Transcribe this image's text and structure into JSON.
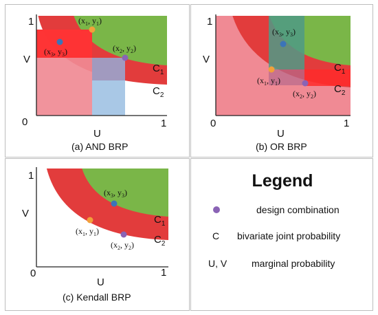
{
  "colors": {
    "green": "#7ab648",
    "red_band": "#e23c3c",
    "pink": "#f08a94",
    "blue": "#a9c8e6",
    "bright_red": "#ff2a2a",
    "teal": "#4f9a86",
    "point_design": "#8a63b5",
    "point_x1": "#f2a03a",
    "point_x3": "#3b74b8"
  },
  "panels": {
    "and": {
      "caption": "(a) AND BRP",
      "axis_v": "V",
      "axis_u": "U",
      "origin": "0",
      "tick_one_x": "1",
      "tick_one_y": "1",
      "curve1": "C",
      "curve1_sub": "1",
      "curve2": "C",
      "curve2_sub": "2",
      "p1_label": "(x",
      "p1_sub1": "1",
      "p1_mid": ", y",
      "p1_sub2": "1",
      "p1_end": ")",
      "p2_label": "(x",
      "p2_sub1": "2",
      "p2_mid": ", y",
      "p2_sub2": "2",
      "p2_end": ")",
      "p3_label": "(x",
      "p3_sub1": "3",
      "p3_mid": ", y",
      "p3_sub2": "3",
      "p3_end": ")"
    },
    "or": {
      "caption": "(b) OR BRP",
      "axis_v": "V",
      "axis_u": "U",
      "origin": "0",
      "tick_one_x": "1",
      "tick_one_y": "1",
      "curve1": "C",
      "curve1_sub": "1",
      "curve2": "C",
      "curve2_sub": "2",
      "p1_label": "(x",
      "p1_sub1": "1",
      "p1_mid": ", y",
      "p1_sub2": "1",
      "p1_end": ")",
      "p2_label": "(x",
      "p2_sub1": "2",
      "p2_mid": ", y",
      "p2_sub2": "2",
      "p2_end": ")",
      "p3_label": "(x",
      "p3_sub1": "3",
      "p3_mid": ", y",
      "p3_sub2": "3",
      "p3_end": ")"
    },
    "kendall": {
      "caption": "(c) Kendall BRP",
      "axis_v": "V",
      "axis_u": "U",
      "origin": "0",
      "tick_one_x": "1",
      "tick_one_y": "1",
      "curve1": "C",
      "curve1_sub": "1",
      "curve2": "C",
      "curve2_sub": "2",
      "p1_label": "(x",
      "p1_sub1": "1",
      "p1_mid": ", y",
      "p1_sub2": "1",
      "p1_end": ")",
      "p2_label": "(x",
      "p2_sub1": "2",
      "p2_mid": ", y",
      "p2_sub2": "2",
      "p2_end": ")",
      "p3_label": "(x",
      "p3_sub1": "3",
      "p3_mid": ", y",
      "p3_sub2": "3",
      "p3_end": ")"
    }
  },
  "legend": {
    "title": "Legend",
    "rows": [
      {
        "symbol": "",
        "icon": "purple-dot",
        "text": "design combination"
      },
      {
        "symbol": "C",
        "text": "bivariate joint probability"
      },
      {
        "symbol": "U, V",
        "text": "marginal probability"
      }
    ]
  }
}
